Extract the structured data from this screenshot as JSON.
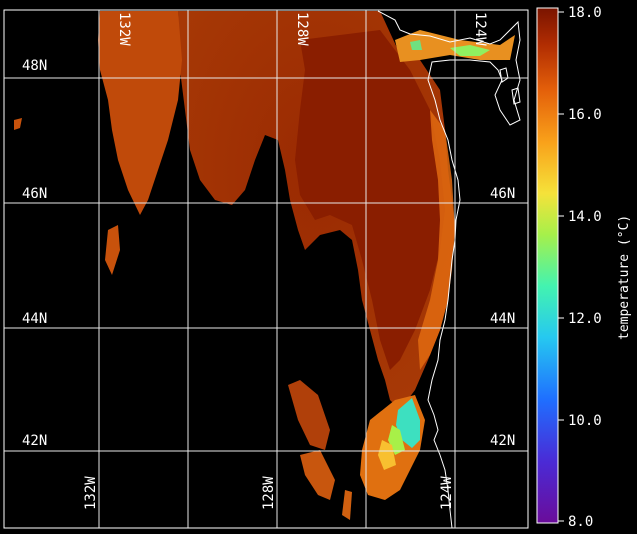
{
  "colorbar": {
    "label": "temperature (°C)",
    "min": 8.0,
    "max": 18.0,
    "ticks": [
      "18.0",
      "16.0",
      "14.0",
      "12.0",
      "10.0",
      "8.0"
    ],
    "colormap": "turbo-like: purple→blue→cyan→green→yellow→orange→dark red"
  },
  "grid": {
    "lat_labels_left": [
      "48N",
      "46N",
      "44N",
      "42N"
    ],
    "lat_labels_right": [
      "46N",
      "44N",
      "42N"
    ],
    "lon_labels_top": [
      "132W",
      "128W",
      "124W"
    ],
    "lon_labels_bottom": [
      "132W",
      "128W",
      "124W"
    ]
  },
  "colors": {
    "background": "#000000",
    "ocean_warm": "#8b2100",
    "ocean_mid": "#b84a08",
    "gridline": "#e8e8e8",
    "coast": "#ffffff"
  }
}
